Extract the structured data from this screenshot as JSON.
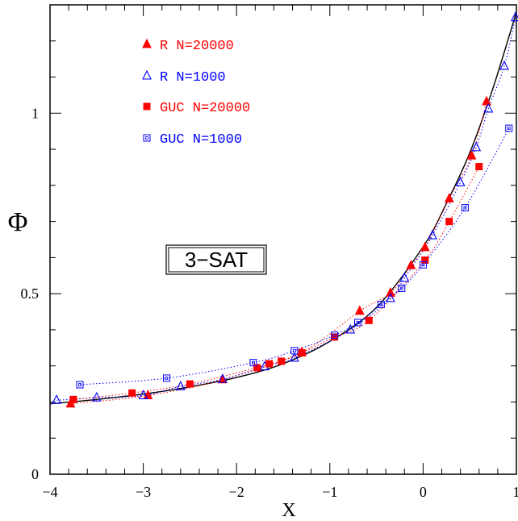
{
  "chart_data": {
    "type": "scatter",
    "xlabel": "X",
    "ylabel": "Φ",
    "xlim": [
      -4,
      1
    ],
    "ylim": [
      0,
      1.3
    ],
    "x_ticks": [
      -4,
      -3,
      -2,
      -1,
      0,
      1
    ],
    "x_tick_labels": [
      "−4",
      "−3",
      "−2",
      "−1",
      "0",
      "1"
    ],
    "y_ticks": [
      0,
      0.5,
      1
    ],
    "y_tick_labels": [
      "0",
      "0.5",
      "1"
    ],
    "annotation": "3−SAT",
    "legend_position": "top-left",
    "grid": false,
    "theory_curve": {
      "x": [
        -4,
        -3.5,
        -3,
        -2.5,
        -2,
        -1.5,
        -1,
        -0.5,
        0,
        0.25,
        0.5,
        0.75,
        1.0
      ],
      "y": [
        0.195,
        0.207,
        0.222,
        0.242,
        0.268,
        0.306,
        0.368,
        0.462,
        0.63,
        0.75,
        0.89,
        1.07,
        1.28
      ]
    },
    "series": [
      {
        "name": "R N=20000",
        "color": "#ff0000",
        "marker": "filled-triangle",
        "x": [
          -3.78,
          -2.95,
          -2.15,
          -1.3,
          -0.68,
          -0.35,
          -0.13,
          0.02,
          0.28,
          0.52,
          0.68
        ],
        "y": [
          0.195,
          0.218,
          0.262,
          0.338,
          0.452,
          0.502,
          0.578,
          0.628,
          0.763,
          0.882,
          1.032
        ]
      },
      {
        "name": "R N=1000",
        "color": "#0000ff",
        "marker": "open-triangle",
        "x": [
          -3.93,
          -3.5,
          -3.0,
          -2.6,
          -2.15,
          -1.7,
          -1.38,
          -0.78,
          -0.35,
          -0.2,
          0.1,
          0.4,
          0.57,
          0.7,
          0.87,
          0.99
        ],
        "y": [
          0.205,
          0.212,
          0.218,
          0.243,
          0.263,
          0.298,
          0.322,
          0.4,
          0.487,
          0.543,
          0.661,
          0.808,
          0.905,
          1.012,
          1.13,
          1.265
        ]
      },
      {
        "name": "GUC N=20000",
        "color": "#ff0000",
        "marker": "filled-square",
        "x": [
          -3.75,
          -3.12,
          -2.5,
          -1.78,
          -1.65,
          -1.52,
          -1.3,
          -0.95,
          -0.58,
          0.02,
          0.28,
          0.6
        ],
        "y": [
          0.207,
          0.225,
          0.25,
          0.295,
          0.306,
          0.313,
          0.336,
          0.38,
          0.426,
          0.593,
          0.7,
          0.852
        ]
      },
      {
        "name": "GUC N=1000",
        "color": "#0000ff",
        "marker": "open-square",
        "x": [
          -3.68,
          -2.75,
          -1.82,
          -1.38,
          -0.95,
          -0.7,
          -0.45,
          -0.23,
          0.0,
          0.45,
          0.92
        ],
        "y": [
          0.248,
          0.266,
          0.309,
          0.342,
          0.385,
          0.42,
          0.47,
          0.515,
          0.58,
          0.738,
          0.958
        ]
      }
    ]
  }
}
